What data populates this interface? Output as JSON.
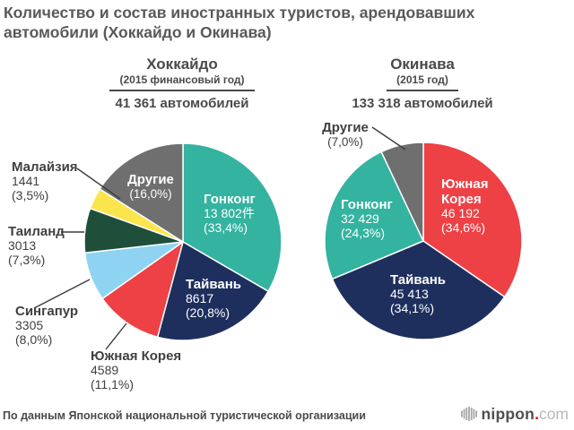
{
  "page": {
    "title": "Количество и состав иностранных туристов, арендовавших автомобили (Хоккайдо и Окинава)",
    "source": "По данным Японской национальной туристической организации",
    "logo": {
      "brand": "nippon",
      "dot": ".",
      "tld": "com",
      "dot_color": "#e60012"
    }
  },
  "chart_data": [
    {
      "type": "pie",
      "region": "Хоккайдо",
      "period": "(2015 финансовый год)",
      "total_label": "41 361 автомобилей",
      "total_value": 41361,
      "start_angle_deg": 0,
      "direction": "clockwise",
      "slices": [
        {
          "name": "Гонконг",
          "value": 13802,
          "value_label": "13 802件",
          "pct": 33.4,
          "pct_label": "(33,4%)",
          "color": "#33b3a0",
          "label_placement": "inside"
        },
        {
          "name": "Тайвань",
          "value": 8617,
          "value_label": "8617",
          "pct": 20.8,
          "pct_label": "(20,8%)",
          "color": "#1e2f5e",
          "label_placement": "inside"
        },
        {
          "name": "Южная Корея",
          "value": 4589,
          "value_label": "4589",
          "pct": 11.1,
          "pct_label": "(11,1%)",
          "color": "#ee4145",
          "label_placement": "outside"
        },
        {
          "name": "Сингапур",
          "value": 3305,
          "value_label": "3305",
          "pct": 8.0,
          "pct_label": "(8,0%)",
          "color": "#8ed4f2",
          "label_placement": "outside"
        },
        {
          "name": "Таиланд",
          "value": 3013,
          "value_label": "3013",
          "pct": 7.3,
          "pct_label": "(7,3%)",
          "color": "#1f4f3a",
          "label_placement": "outside"
        },
        {
          "name": "Малайзия",
          "value": 1441,
          "value_label": "1441",
          "pct": 3.5,
          "pct_label": "(3,5%)",
          "color": "#fbe54d",
          "label_placement": "outside"
        },
        {
          "name": "Другие",
          "value": null,
          "value_label": "",
          "pct": 16.0,
          "pct_label": "(16,0%)",
          "color": "#6f6f6f",
          "label_placement": "inside"
        }
      ]
    },
    {
      "type": "pie",
      "region": "Окинава",
      "period": "(2015 год)",
      "total_label": "133 318 автомобилей",
      "total_value": 133318,
      "start_angle_deg": 0,
      "direction": "clockwise",
      "slices": [
        {
          "name": "Южная Корея",
          "value": 46192,
          "value_label": "46 192",
          "pct": 34.6,
          "pct_label": "(34,6%)",
          "color": "#ee4145",
          "label_placement": "inside"
        },
        {
          "name": "Тайвань",
          "value": 45413,
          "value_label": "45 413",
          "pct": 34.1,
          "pct_label": "(34,1%)",
          "color": "#1e2f5e",
          "label_placement": "inside"
        },
        {
          "name": "Гонконг",
          "value": 32429,
          "value_label": "32 429",
          "pct": 24.3,
          "pct_label": "(24,3%)",
          "color": "#33b3a0",
          "label_placement": "inside"
        },
        {
          "name": "Другие",
          "value": null,
          "value_label": "",
          "pct": 7.0,
          "pct_label": "(7,0%)",
          "color": "#6f6f6f",
          "label_placement": "outside"
        }
      ]
    }
  ]
}
